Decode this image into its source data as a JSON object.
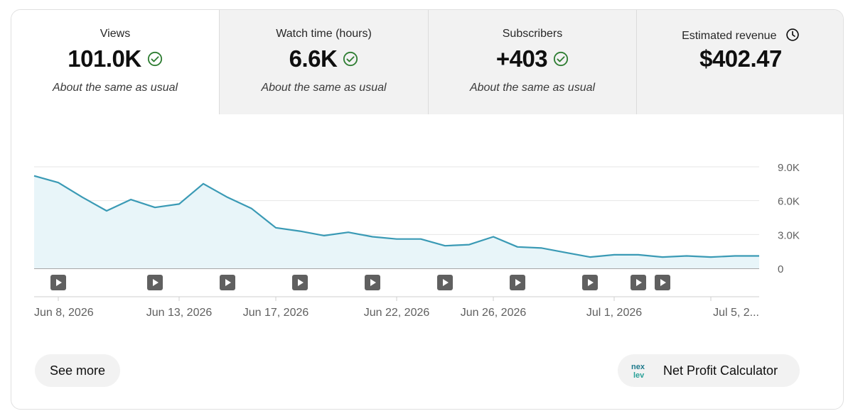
{
  "metrics": [
    {
      "label": "Views",
      "value": "101.0K",
      "note": "About the same as usual",
      "icon": "check-circle-icon",
      "selected": true
    },
    {
      "label": "Watch time (hours)",
      "value": "6.6K",
      "note": "About the same as usual",
      "icon": "check-circle-icon"
    },
    {
      "label": "Subscribers",
      "value": "+403",
      "note": "About the same as usual",
      "icon": "check-circle-icon"
    },
    {
      "label": "Estimated revenue",
      "value": "$402.47",
      "note": "",
      "icon": "clock-icon"
    }
  ],
  "colors": {
    "line": "#3a9ab5",
    "fill": "#e8f5f9",
    "check": "#2e7d32",
    "grid": "#e6e6e6"
  },
  "chart_data": {
    "type": "area",
    "x": [
      "2026-06-07",
      "2026-06-08",
      "2026-06-09",
      "2026-06-10",
      "2026-06-11",
      "2026-06-12",
      "2026-06-13",
      "2026-06-14",
      "2026-06-15",
      "2026-06-16",
      "2026-06-17",
      "2026-06-18",
      "2026-06-19",
      "2026-06-20",
      "2026-06-21",
      "2026-06-22",
      "2026-06-23",
      "2026-06-24",
      "2026-06-25",
      "2026-06-26",
      "2026-06-27",
      "2026-06-28",
      "2026-06-29",
      "2026-06-30",
      "2026-07-01",
      "2026-07-02",
      "2026-07-03",
      "2026-07-04",
      "2026-07-05",
      "2026-07-06",
      "2026-07-07"
    ],
    "series": [
      {
        "values": [
          8200,
          7600,
          6300,
          5100,
          6100,
          5400,
          5700,
          7500,
          6300,
          5300,
          3600,
          3300,
          2900,
          3200,
          2800,
          2600,
          2600,
          2000,
          2100,
          2800,
          1900,
          1800,
          1400,
          1000,
          1200,
          1200,
          1000,
          1100,
          1000,
          1100,
          1100
        ]
      }
    ],
    "ylim": [
      0,
      9000
    ],
    "yticks": [
      0,
      3000,
      6000,
      9000
    ],
    "ytick_labels": [
      "0",
      "3.0K",
      "6.0K",
      "9.0K"
    ],
    "xtick_labels": [
      {
        "x": "2026-06-08",
        "label": "Jun 8, 2026"
      },
      {
        "x": "2026-06-13",
        "label": "Jun 13, 2026"
      },
      {
        "x": "2026-06-17",
        "label": "Jun 17, 2026"
      },
      {
        "x": "2026-06-22",
        "label": "Jun 22, 2026"
      },
      {
        "x": "2026-06-26",
        "label": "Jun 26, 2026"
      },
      {
        "x": "2026-07-01",
        "label": "Jul 1, 2026"
      },
      {
        "x": "2026-07-05",
        "label": "Jul 5, 2..."
      }
    ],
    "video_markers": [
      "2026-06-08",
      "2026-06-12",
      "2026-06-15",
      "2026-06-18",
      "2026-06-21",
      "2026-06-24",
      "2026-06-27",
      "2026-06-30",
      "2026-07-02",
      "2026-07-03"
    ],
    "grid": true
  },
  "buttons": {
    "see_more": "See more",
    "net_profit": "Net Profit Calculator"
  },
  "npc_logo_text": "nexlev"
}
